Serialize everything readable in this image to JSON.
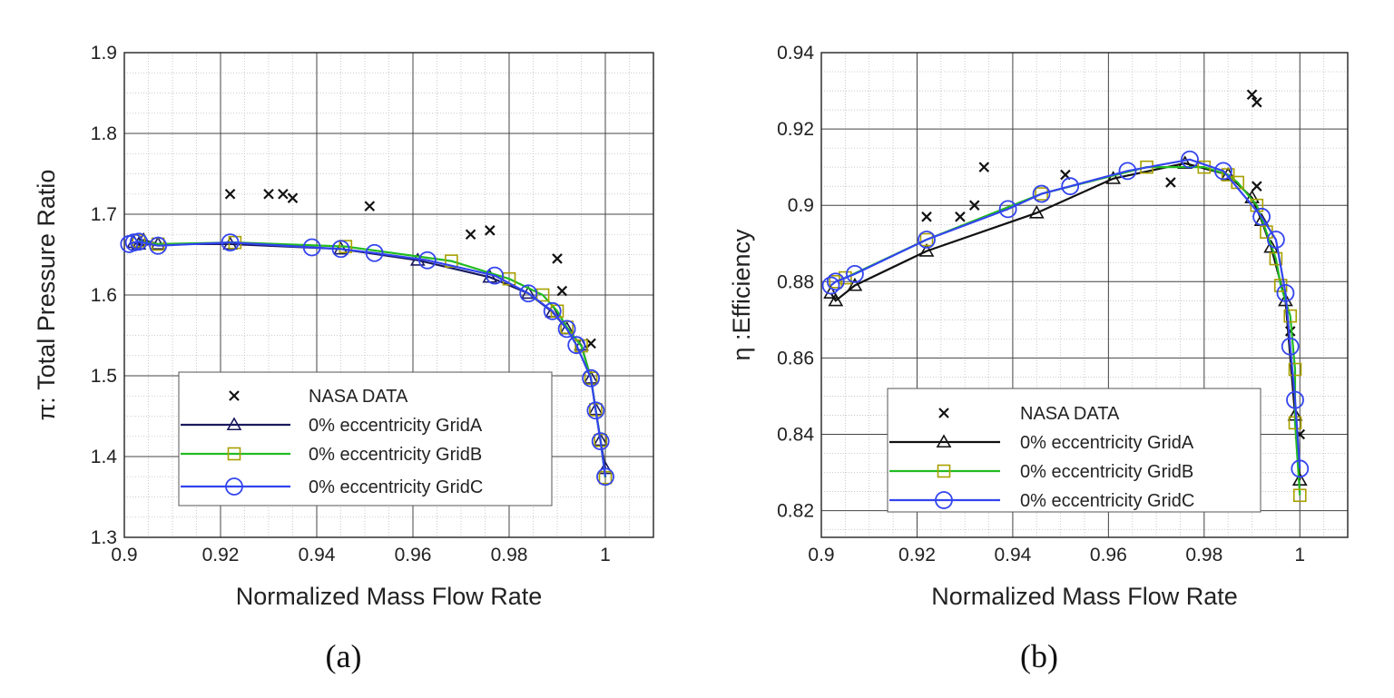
{
  "chart_data": [
    {
      "type": "scatter",
      "panel_label": "(a)",
      "title": "",
      "xlabel": "Normalized Mass Flow Rate",
      "ylabel": "π: Total Pressure Ratio",
      "xlim": [
        0.9,
        1.01
      ],
      "ylim": [
        1.3,
        1.9
      ],
      "xticks": [
        0.9,
        0.92,
        0.94,
        0.96,
        0.98,
        1
      ],
      "xtick_labels": [
        "0.9",
        "0.92",
        "0.94",
        "0.96",
        "0.98",
        "1"
      ],
      "yticks": [
        1.3,
        1.4,
        1.5,
        1.6,
        1.7,
        1.8,
        1.9
      ],
      "ytick_labels": [
        "1.3",
        "1.4",
        "1.5",
        "1.6",
        "1.7",
        "1.8",
        "1.9"
      ],
      "grid": true,
      "legend_position": "bottom-left",
      "series": [
        {
          "name": "NASA DATA",
          "marker": "x",
          "line": false,
          "color": "#111111",
          "x": [
            0.922,
            0.93,
            0.933,
            0.935,
            0.951,
            0.972,
            0.976,
            0.99,
            0.991,
            0.997
          ],
          "y": [
            1.725,
            1.725,
            1.725,
            1.72,
            1.71,
            1.675,
            1.68,
            1.645,
            1.605,
            1.54
          ]
        },
        {
          "name": "0% eccentricity GridA",
          "marker": "triangle",
          "line": true,
          "color": "#1a1a5e",
          "x": [
            0.902,
            0.903,
            0.904,
            0.907,
            0.922,
            0.945,
            0.961,
            0.976,
            0.984,
            0.989,
            0.992,
            0.995,
            0.997,
            0.998,
            0.999,
            1.0
          ],
          "y": [
            1.665,
            1.663,
            1.668,
            1.663,
            1.663,
            1.657,
            1.643,
            1.622,
            1.602,
            1.579,
            1.558,
            1.538,
            1.497,
            1.458,
            1.42,
            1.385
          ]
        },
        {
          "name": "0% eccentricity GridB",
          "marker": "square",
          "line": true,
          "color": "#22bb22",
          "x": [
            0.903,
            0.907,
            0.923,
            0.946,
            0.968,
            0.98,
            0.987,
            0.99,
            0.992,
            0.995,
            0.997,
            0.998,
            0.999,
            1.0
          ],
          "y": [
            1.667,
            1.663,
            1.665,
            1.66,
            1.642,
            1.62,
            1.6,
            1.58,
            1.56,
            1.537,
            1.497,
            1.458,
            1.42,
            1.374
          ]
        },
        {
          "name": "0% eccentricity GridC",
          "marker": "circle",
          "line": true,
          "color": "#3344ee",
          "x": [
            0.901,
            0.902,
            0.903,
            0.907,
            0.922,
            0.939,
            0.945,
            0.952,
            0.963,
            0.977,
            0.984,
            0.989,
            0.992,
            0.994,
            0.997,
            0.998,
            0.999,
            1.0
          ],
          "y": [
            1.663,
            1.665,
            1.666,
            1.661,
            1.665,
            1.659,
            1.657,
            1.652,
            1.643,
            1.624,
            1.602,
            1.58,
            1.558,
            1.538,
            1.497,
            1.457,
            1.419,
            1.375
          ]
        }
      ]
    },
    {
      "type": "scatter",
      "panel_label": "(b)",
      "title": "",
      "xlabel": "Normalized Mass Flow Rate",
      "ylabel": "η :Efficiency",
      "xlim": [
        0.9,
        1.01
      ],
      "ylim": [
        0.813,
        0.94
      ],
      "xticks": [
        0.9,
        0.92,
        0.94,
        0.96,
        0.98,
        1
      ],
      "xtick_labels": [
        "0.9",
        "0.92",
        "0.94",
        "0.96",
        "0.98",
        "1"
      ],
      "yticks": [
        0.82,
        0.84,
        0.86,
        0.88,
        0.9,
        0.92,
        0.94
      ],
      "ytick_labels": [
        "0.82",
        "0.84",
        "0.86",
        "0.88",
        "0.9",
        "0.92",
        "0.94"
      ],
      "grid": true,
      "legend_position": "bottom-left",
      "series": [
        {
          "name": "NASA DATA",
          "marker": "x",
          "line": false,
          "color": "#111111",
          "x": [
            0.922,
            0.929,
            0.932,
            0.934,
            0.951,
            0.973,
            0.99,
            0.991,
            0.991,
            0.998,
            1.0
          ],
          "y": [
            0.897,
            0.897,
            0.9,
            0.91,
            0.908,
            0.906,
            0.929,
            0.927,
            0.905,
            0.867,
            0.84
          ]
        },
        {
          "name": "0% eccentricity GridA",
          "marker": "triangle",
          "line": true,
          "color": "#111111",
          "x": [
            0.902,
            0.903,
            0.907,
            0.922,
            0.945,
            0.961,
            0.976,
            0.985,
            0.99,
            0.992,
            0.994,
            0.997,
            0.999,
            1.0
          ],
          "y": [
            0.877,
            0.875,
            0.879,
            0.888,
            0.898,
            0.907,
            0.911,
            0.908,
            0.902,
            0.896,
            0.889,
            0.875,
            0.845,
            0.828
          ]
        },
        {
          "name": "0% eccentricity GridB",
          "marker": "square",
          "line": true,
          "color": "#22bb22",
          "x": [
            0.903,
            0.905,
            0.922,
            0.946,
            0.968,
            0.98,
            0.985,
            0.987,
            0.991,
            0.993,
            0.995,
            0.996,
            0.998,
            0.999,
            0.999,
            1.0
          ],
          "y": [
            0.88,
            0.881,
            0.891,
            0.903,
            0.91,
            0.91,
            0.908,
            0.906,
            0.9,
            0.893,
            0.886,
            0.879,
            0.871,
            0.857,
            0.843,
            0.824
          ]
        },
        {
          "name": "0% eccentricity GridC",
          "marker": "circle",
          "line": true,
          "color": "#3344ee",
          "x": [
            0.902,
            0.903,
            0.907,
            0.922,
            0.939,
            0.946,
            0.952,
            0.964,
            0.977,
            0.984,
            0.992,
            0.995,
            0.997,
            0.998,
            0.999,
            1.0
          ],
          "y": [
            0.879,
            0.88,
            0.882,
            0.891,
            0.899,
            0.903,
            0.905,
            0.909,
            0.912,
            0.909,
            0.897,
            0.891,
            0.877,
            0.863,
            0.849,
            0.831
          ]
        }
      ]
    }
  ]
}
